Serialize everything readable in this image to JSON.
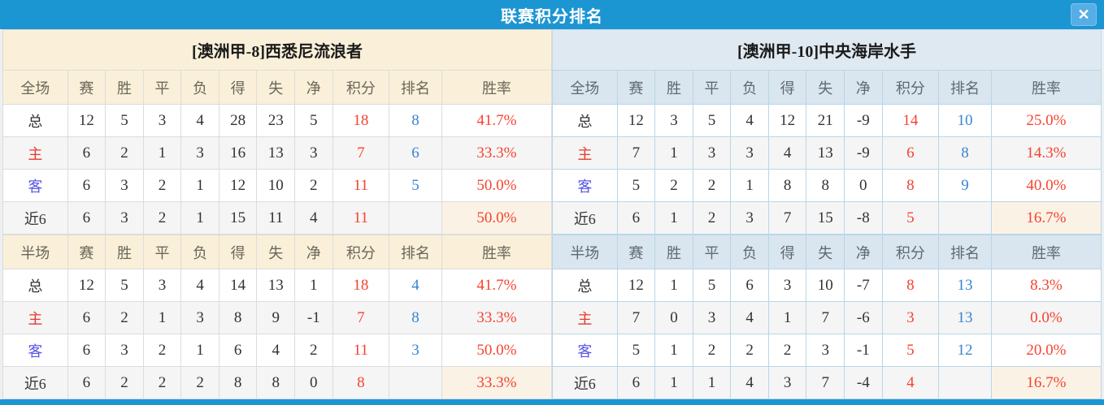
{
  "titlebar": {
    "title": "联赛积分排名",
    "close_icon": "✕"
  },
  "columns": [
    "赛",
    "胜",
    "平",
    "负",
    "得",
    "失",
    "净",
    "积分",
    "排名",
    "胜率"
  ],
  "colors": {
    "accent_blue": "#1c95d3",
    "value_red": "#f5432f",
    "rank_blue": "#3786d1",
    "home_label_red": "#e6392e",
    "away_label_blue": "#5a57e8",
    "left_panel_header": "#faf0d9",
    "right_panel_header": "#dfe9f1"
  },
  "panels": [
    {
      "team": "[澳洲甲-8]西悉尼流浪者",
      "full": {
        "scope": "全场",
        "rows": [
          {
            "label": "总",
            "c": [
              "12",
              "5",
              "3",
              "4",
              "28",
              "23",
              "5",
              "18",
              "8",
              "41.7%"
            ]
          },
          {
            "label": "主",
            "c": [
              "6",
              "2",
              "1",
              "3",
              "16",
              "13",
              "3",
              "7",
              "6",
              "33.3%"
            ]
          },
          {
            "label": "客",
            "c": [
              "6",
              "3",
              "2",
              "1",
              "12",
              "10",
              "2",
              "11",
              "5",
              "50.0%"
            ]
          },
          {
            "label": "近6",
            "c": [
              "6",
              "3",
              "2",
              "1",
              "15",
              "11",
              "4",
              "11",
              "",
              "50.0%"
            ]
          }
        ]
      },
      "half": {
        "scope": "半场",
        "rows": [
          {
            "label": "总",
            "c": [
              "12",
              "5",
              "3",
              "4",
              "14",
              "13",
              "1",
              "18",
              "4",
              "41.7%"
            ]
          },
          {
            "label": "主",
            "c": [
              "6",
              "2",
              "1",
              "3",
              "8",
              "9",
              "-1",
              "7",
              "8",
              "33.3%"
            ]
          },
          {
            "label": "客",
            "c": [
              "6",
              "3",
              "2",
              "1",
              "6",
              "4",
              "2",
              "11",
              "3",
              "50.0%"
            ]
          },
          {
            "label": "近6",
            "c": [
              "6",
              "2",
              "2",
              "2",
              "8",
              "8",
              "0",
              "8",
              "",
              "33.3%"
            ]
          }
        ]
      }
    },
    {
      "team": "[澳洲甲-10]中央海岸水手",
      "full": {
        "scope": "全场",
        "rows": [
          {
            "label": "总",
            "c": [
              "12",
              "3",
              "5",
              "4",
              "12",
              "21",
              "-9",
              "14",
              "10",
              "25.0%"
            ]
          },
          {
            "label": "主",
            "c": [
              "7",
              "1",
              "3",
              "3",
              "4",
              "13",
              "-9",
              "6",
              "8",
              "14.3%"
            ]
          },
          {
            "label": "客",
            "c": [
              "5",
              "2",
              "2",
              "1",
              "8",
              "8",
              "0",
              "8",
              "9",
              "40.0%"
            ]
          },
          {
            "label": "近6",
            "c": [
              "6",
              "1",
              "2",
              "3",
              "7",
              "15",
              "-8",
              "5",
              "",
              "16.7%"
            ]
          }
        ]
      },
      "half": {
        "scope": "半场",
        "rows": [
          {
            "label": "总",
            "c": [
              "12",
              "1",
              "5",
              "6",
              "3",
              "10",
              "-7",
              "8",
              "13",
              "8.3%"
            ]
          },
          {
            "label": "主",
            "c": [
              "7",
              "0",
              "3",
              "4",
              "1",
              "7",
              "-6",
              "3",
              "13",
              "0.0%"
            ]
          },
          {
            "label": "客",
            "c": [
              "5",
              "1",
              "2",
              "2",
              "2",
              "3",
              "-1",
              "5",
              "12",
              "20.0%"
            ]
          },
          {
            "label": "近6",
            "c": [
              "6",
              "1",
              "1",
              "4",
              "3",
              "7",
              "-4",
              "4",
              "",
              "16.7%"
            ]
          }
        ]
      }
    }
  ]
}
